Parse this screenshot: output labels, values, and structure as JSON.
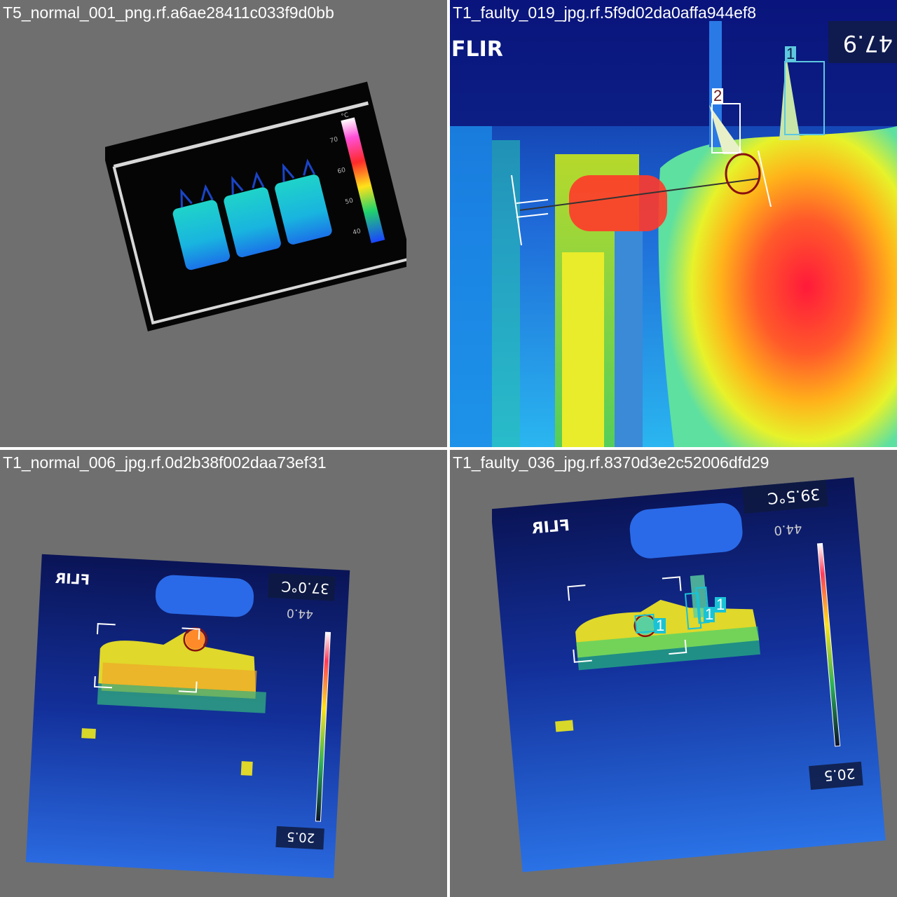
{
  "mosaic": {
    "tiles": [
      {
        "title": "T5_normal_001_png.rf.a6ae28411c033f9d0bb",
        "colorbar": {
          "unit": "°C",
          "ticks": [
            "70",
            "60",
            "50",
            "40"
          ]
        },
        "detections": []
      },
      {
        "title": "T1_faulty_019_jpg.rf.5f9d02da0affa944ef8",
        "brand": "FLIR",
        "readout_top": "47.9",
        "detections": [
          {
            "label": "1",
            "color": "#5ec8df"
          },
          {
            "label": "2",
            "color": "#ffffff"
          }
        ]
      },
      {
        "title": "T1_normal_006_jpg.rf.0d2b38f002daa73ef31",
        "brand": "FLIR",
        "spot_temp": "37.0°C",
        "max_value": "44.0",
        "min_value": "20.5",
        "detections": []
      },
      {
        "title": "T1_faulty_036_jpg.rf.8370d3e2c52006dfd29",
        "brand": "FLIR",
        "spot_temp": "39.5°C",
        "max_value": "44.0",
        "min_value": "20.5",
        "detections": [
          {
            "label": "1",
            "color": "#19c3d6"
          },
          {
            "label": "1",
            "color": "#19c3d6"
          },
          {
            "label": "1",
            "color": "#19c3d6"
          }
        ]
      }
    ],
    "colors": {
      "tile_background": "#6f6f6f",
      "separator": "#ffffff",
      "title_text": "#ffffff",
      "detection_cyan": "#19c3d6"
    }
  }
}
